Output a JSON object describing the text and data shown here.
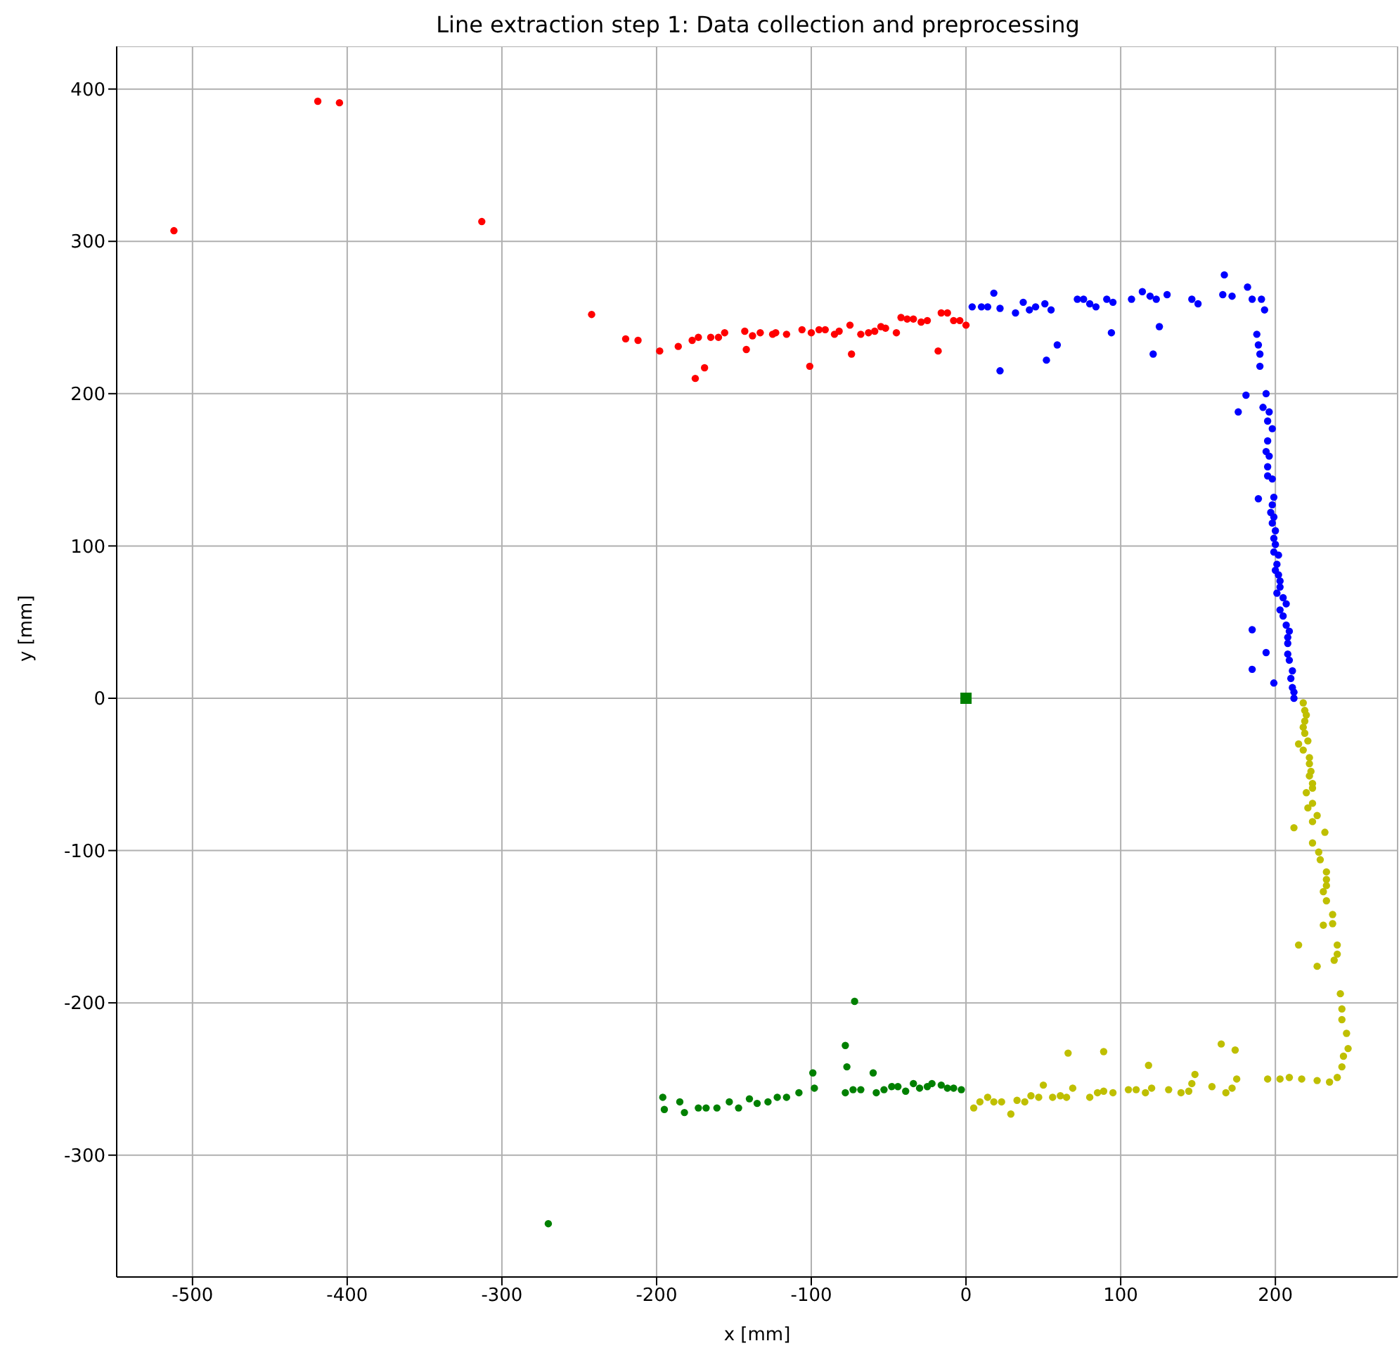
{
  "chart_data": {
    "type": "scatter",
    "title": "Line extraction step 1: Data collection and preprocessing",
    "xlabel": "x [mm]",
    "ylabel": "y [mm]",
    "xlim": [
      -549,
      279
    ],
    "ylim": [
      -380,
      428
    ],
    "xticks": [
      -500,
      -400,
      -300,
      -200,
      -100,
      0,
      100,
      200
    ],
    "yticks": [
      -300,
      -200,
      -100,
      0,
      100,
      200,
      300,
      400
    ],
    "grid": true,
    "marker": "circle",
    "series": [
      {
        "color": "#ff0000",
        "x": [
          -512,
          -419,
          -405,
          -313,
          -242,
          -220,
          -212,
          -198,
          -186,
          -177,
          -175,
          -173,
          -169,
          -165,
          -160,
          -156,
          -143,
          -142,
          -138,
          -133,
          -125,
          -123,
          -116,
          -106,
          -101,
          -100,
          -95,
          -91,
          -85,
          -82,
          -75,
          -74,
          -68,
          -63,
          -59,
          -55,
          -52,
          -45,
          -42,
          -38,
          -34,
          -29,
          -25,
          -18,
          -16,
          -12,
          -8,
          -4,
          0
        ],
        "values": [
          307,
          392,
          391,
          313,
          252,
          236,
          235,
          228,
          231,
          235,
          210,
          237,
          217,
          237,
          237,
          240,
          241,
          229,
          238,
          240,
          239,
          240,
          239,
          242,
          218,
          240,
          242,
          242,
          239,
          241,
          245,
          226,
          239,
          240,
          241,
          244,
          243,
          240,
          250,
          249,
          249,
          247,
          248,
          228,
          253,
          253,
          248,
          248,
          245
        ]
      },
      {
        "color": "#0000ff",
        "x": [
          4,
          10,
          14,
          18,
          22,
          22,
          32,
          37,
          41,
          45,
          51,
          52,
          55,
          59,
          72,
          76,
          80,
          84,
          91,
          94,
          95,
          107,
          114,
          119,
          121,
          123,
          125,
          130,
          146,
          150,
          166,
          167,
          172,
          182,
          185,
          191,
          193,
          188,
          189,
          190,
          190,
          181,
          194,
          176,
          192,
          196,
          195,
          198,
          195,
          194,
          196,
          195,
          195,
          198,
          189,
          199,
          198,
          197,
          199,
          198,
          200,
          199,
          200,
          199,
          202,
          201,
          200,
          202,
          203,
          203,
          201,
          205,
          207,
          203,
          205,
          207,
          209,
          185,
          208,
          208,
          194,
          208,
          209,
          185,
          211,
          210,
          199,
          211,
          212,
          212
        ],
        "values": [
          257,
          257,
          257,
          266,
          256,
          215,
          253,
          260,
          255,
          257,
          259,
          222,
          255,
          232,
          262,
          262,
          259,
          257,
          262,
          240,
          260,
          262,
          267,
          264,
          226,
          262,
          244,
          265,
          262,
          259,
          265,
          278,
          264,
          270,
          262,
          262,
          255,
          239,
          232,
          226,
          218,
          199,
          200,
          188,
          191,
          188,
          182,
          177,
          169,
          162,
          159,
          152,
          146,
          144,
          131,
          132,
          127,
          122,
          119,
          115,
          110,
          105,
          101,
          96,
          94,
          88,
          84,
          81,
          77,
          73,
          69,
          66,
          62,
          58,
          54,
          48,
          44,
          45,
          40,
          36,
          30,
          29,
          25,
          19,
          18,
          13,
          10,
          7,
          4,
          0
        ]
      },
      {
        "color": "#bfbf00",
        "x": [
          218,
          219,
          220,
          219,
          218,
          219,
          221,
          215,
          218,
          222,
          222,
          223,
          222,
          224,
          224,
          220,
          224,
          221,
          227,
          224,
          212,
          232,
          224,
          228,
          229,
          233,
          233,
          233,
          231,
          233,
          237,
          237,
          231,
          215,
          240,
          240,
          238,
          227,
          242,
          243,
          243,
          246,
          247,
          244,
          243,
          240,
          235,
          227,
          217,
          209,
          203,
          195,
          5,
          9,
          14,
          18,
          23,
          29,
          33,
          38,
          42,
          47,
          50,
          56,
          61,
          65,
          66,
          69,
          80,
          85,
          89,
          89,
          95,
          105,
          110,
          116,
          118,
          120,
          131,
          139,
          144,
          146,
          148,
          159,
          165,
          168,
          172,
          174,
          175
        ],
        "values": [
          -3,
          -8,
          -11,
          -15,
          -19,
          -23,
          -28,
          -30,
          -34,
          -39,
          -43,
          -48,
          -51,
          -56,
          -59,
          -62,
          -69,
          -72,
          -77,
          -81,
          -85,
          -88,
          -95,
          -101,
          -106,
          -114,
          -119,
          -123,
          -127,
          -133,
          -142,
          -148,
          -149,
          -162,
          -162,
          -168,
          -172,
          -176,
          -194,
          -204,
          -211,
          -220,
          -230,
          -235,
          -242,
          -249,
          -252,
          -251,
          -250,
          -249,
          -250,
          -250,
          -269,
          -265,
          -262,
          -265,
          -265,
          -273,
          -264,
          -265,
          -261,
          -262,
          -254,
          -262,
          -261,
          -262,
          -233,
          -256,
          -262,
          -259,
          -258,
          -232,
          -259,
          -257,
          -257,
          -259,
          -241,
          -256,
          -257,
          -259,
          -258,
          -253,
          -247,
          -255,
          -227,
          -259,
          -256,
          -231,
          -250
        ]
      },
      {
        "color": "#008000",
        "x": [
          -270,
          -196,
          -195,
          -185,
          -182,
          -173,
          -168,
          -161,
          -153,
          -147,
          -140,
          -135,
          -128,
          -122,
          -116,
          -108,
          -99,
          -98,
          -78,
          -78,
          -77,
          -72,
          -73,
          -68,
          -60,
          -58,
          -53,
          -48,
          -44,
          -39,
          -34,
          -30,
          -25,
          -22,
          -16,
          -12,
          -8,
          -3
        ],
        "values": [
          -345,
          -262,
          -270,
          -265,
          -272,
          -269,
          -269,
          -269,
          -265,
          -269,
          -263,
          -266,
          -265,
          -262,
          -262,
          -259,
          -246,
          -256,
          -259,
          -228,
          -242,
          -199,
          -257,
          -257,
          -246,
          -259,
          -257,
          -255,
          -255,
          -258,
          -253,
          -256,
          -255,
          -253,
          -254,
          -256,
          -256,
          -257
        ]
      },
      {
        "color": "#008000",
        "marker": "square",
        "x": [
          0
        ],
        "values": [
          0
        ]
      }
    ]
  }
}
